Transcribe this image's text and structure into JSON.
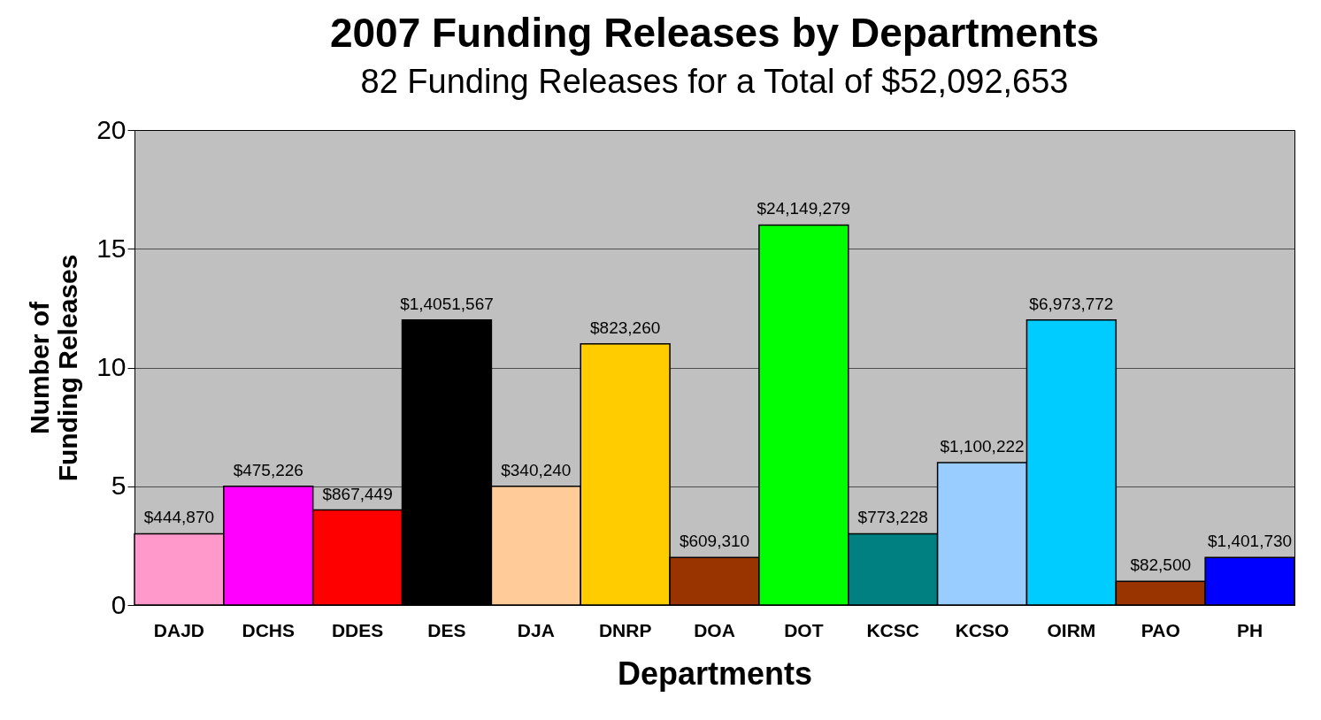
{
  "chart_data": {
    "type": "bar",
    "title": "2007 Funding Releases by Departments",
    "subtitle": "82 Funding Releases for a Total of $52,092,653",
    "xlabel": "Departments",
    "ylabel": "Number of Funding Releases",
    "categories": [
      "DAJD",
      "DCHS",
      "DDES",
      "DES",
      "DJA",
      "DNRP",
      "DOA",
      "DOT",
      "KCSC",
      "KCSO",
      "OIRM",
      "PAO",
      "PH"
    ],
    "values": [
      3,
      5,
      4,
      12,
      5,
      11,
      2,
      16,
      3,
      6,
      12,
      1,
      2
    ],
    "colors": [
      "#ff99cc",
      "#ff00ff",
      "#ff0000",
      "#000000",
      "#ffcc99",
      "#ffcc00",
      "#993300",
      "#00ff00",
      "#008080",
      "#99ccff",
      "#00ccff",
      "#993300",
      "#0000ff"
    ],
    "annotations": [
      {
        "text": "$444,870",
        "x": "DAJD",
        "y": 3
      },
      {
        "text": "$475,226",
        "x": "DCHS",
        "y": 5
      },
      {
        "text": "$867,449",
        "x": "DDES",
        "y": 4
      },
      {
        "text": "$1,4051,567",
        "x": "DES",
        "y": 12
      },
      {
        "text": "$340,240",
        "x": "DJA",
        "y": 5
      },
      {
        "text": "$823,260",
        "x": "DNRP",
        "y": 11
      },
      {
        "text": "$609,310",
        "x": "DOA",
        "y": 2
      },
      {
        "text": "$24,149,279",
        "x": "DOT",
        "y": 16
      },
      {
        "text": "$773,228",
        "x": "KCSC",
        "y": 3
      },
      {
        "text": "$1,100,222",
        "x": "KCSO",
        "y": 6
      },
      {
        "text": "$6,973,772",
        "x": "OIRM",
        "y": 12
      },
      {
        "text": "$82,500",
        "x": "PAO",
        "y": 1
      },
      {
        "text": "$1,401,730",
        "x": "PH",
        "y": 2
      }
    ],
    "ylim": [
      0,
      20
    ],
    "yticks": [
      0,
      5,
      10,
      15,
      20
    ],
    "grid": "y"
  }
}
